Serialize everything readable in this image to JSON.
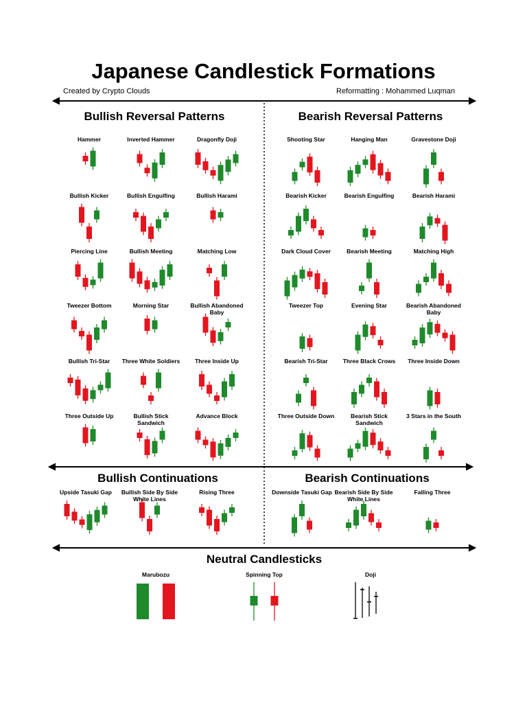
{
  "header": {
    "title": "Japanese Candlestick Formations",
    "created_by": "Created by Crypto Clouds",
    "reformatting": "Reformatting : Mohammed Luqman"
  },
  "sections": [
    {
      "title": "Bullish Reversal Patterns",
      "patterns": [
        "Hammer",
        "Inverted Hammer",
        "Dragonfly Doji",
        "Bullish Kicker",
        "Bullish Engulfing",
        "Bullish Harami",
        "Piercing Line",
        "Bullish Meeting",
        "Matching Low",
        "Tweezer Bottom",
        "Morning Star",
        "Bullish Abandoned Baby",
        "Bullish Tri-Star",
        "Three White Soldiers",
        "Three Inside Up",
        "Three Outside Up",
        "Bullish Stick Sandwich",
        "Advance Block"
      ]
    },
    {
      "title": "Bearish Reversal Patterns",
      "patterns": [
        "Shooting Star",
        "Hanging Man",
        "Gravestone Doji",
        "Bearish Kicker",
        "Bearish Engulfing",
        "Bearish Harami",
        "Dark Cloud Cover",
        "Bearish Meeting",
        "Matching High",
        "Tweezer Top",
        "Evening Star",
        "Bearish Abandoned Baby",
        "Bearish Tri-Star",
        "Three Black Crows",
        "Three Inside Down",
        "Three Outside Down",
        "Bearish Stick Sandwich",
        "3 Stars in the South"
      ]
    },
    {
      "title": "Bullish Continuations",
      "patterns": [
        "Upside Tasuki Gap",
        "Bullish Side By Side White Lines",
        "Rising Three"
      ]
    },
    {
      "title": "Bearish Continuations",
      "patterns": [
        "Downside Tasuki Gap",
        "Bearish Side By Side White Lines",
        "Falling Three"
      ]
    },
    {
      "title": "Neutral Candlesticks",
      "patterns": [
        "Marubozu",
        "Spinning Top",
        "Doji"
      ]
    }
  ]
}
